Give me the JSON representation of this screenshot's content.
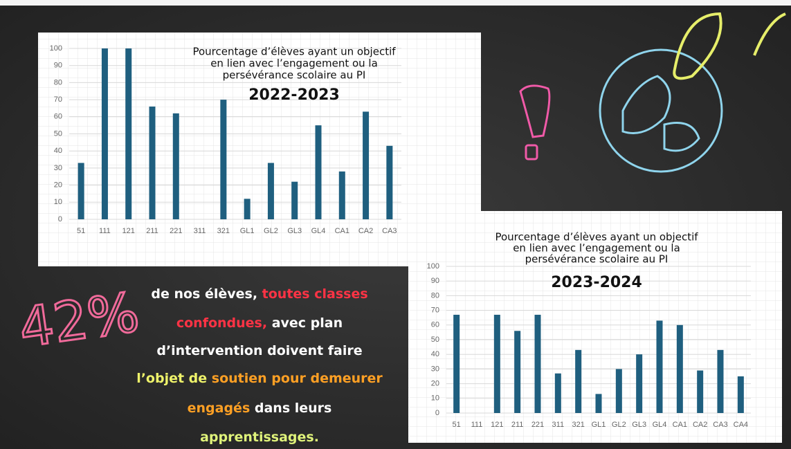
{
  "chart_data": [
    {
      "type": "bar",
      "title": [
        "Pourcentage d’élèves ayant un objectif",
        "en lien avec l’engagement ou la",
        "persévérance scolaire au PI"
      ],
      "subtitle": "2022-2023",
      "categories": [
        "51",
        "111",
        "121",
        "211",
        "221",
        "311",
        "321",
        "GL1",
        "GL2",
        "GL3",
        "GL4",
        "CA1",
        "CA2",
        "CA3"
      ],
      "values": [
        33,
        100,
        100,
        66,
        62,
        0,
        70,
        12,
        33,
        22,
        55,
        28,
        63,
        43
      ],
      "color": "#1f5f7f",
      "ylim": [
        0,
        100
      ],
      "yticks": [
        0,
        10,
        20,
        30,
        40,
        50,
        60,
        70,
        80,
        90,
        100
      ],
      "grid": true
    },
    {
      "type": "bar",
      "title": [
        "Pourcentage d’élèves ayant un objectif",
        "en lien avec l’engagement ou la",
        "persévérance scolaire au PI"
      ],
      "subtitle": "2023-2024",
      "categories": [
        "51",
        "111",
        "121",
        "211",
        "221",
        "311",
        "321",
        "GL1",
        "GL2",
        "GL3",
        "GL4",
        "CA1",
        "CA2",
        "CA3",
        "CA4"
      ],
      "values": [
        67,
        0,
        67,
        56,
        67,
        27,
        43,
        13,
        30,
        40,
        63,
        60,
        29,
        43,
        25
      ],
      "color": "#1f5f7f",
      "ylim": [
        0,
        100
      ],
      "yticks": [
        0,
        10,
        20,
        30,
        40,
        50,
        60,
        70,
        80,
        90,
        100
      ],
      "grid": true
    }
  ],
  "callout": {
    "figure": "42%",
    "figure_color": "#f06a9a",
    "lines": [
      [
        {
          "text": "de nos élèves, ",
          "color": "#ffffff"
        },
        {
          "text": "toutes classes",
          "color": "#ff3345"
        }
      ],
      [
        {
          "text": "confondues,",
          "color": "#ff3345"
        },
        {
          "text": " avec plan",
          "color": "#ffffff"
        }
      ],
      [
        {
          "text": "d’intervention doivent faire",
          "color": "#ffffff"
        }
      ],
      [
        {
          "text": "l’objet de ",
          "color": "#eef26a"
        },
        {
          "text": "soutien pour demeurer",
          "color": "#ffa024"
        }
      ],
      [
        {
          "text": "engagés",
          "color": "#ffa024"
        },
        {
          "text": " dans leurs",
          "color": "#ffffff"
        }
      ],
      [
        {
          "text": "apprentissages.",
          "color": "#dff27a"
        }
      ]
    ]
  }
}
